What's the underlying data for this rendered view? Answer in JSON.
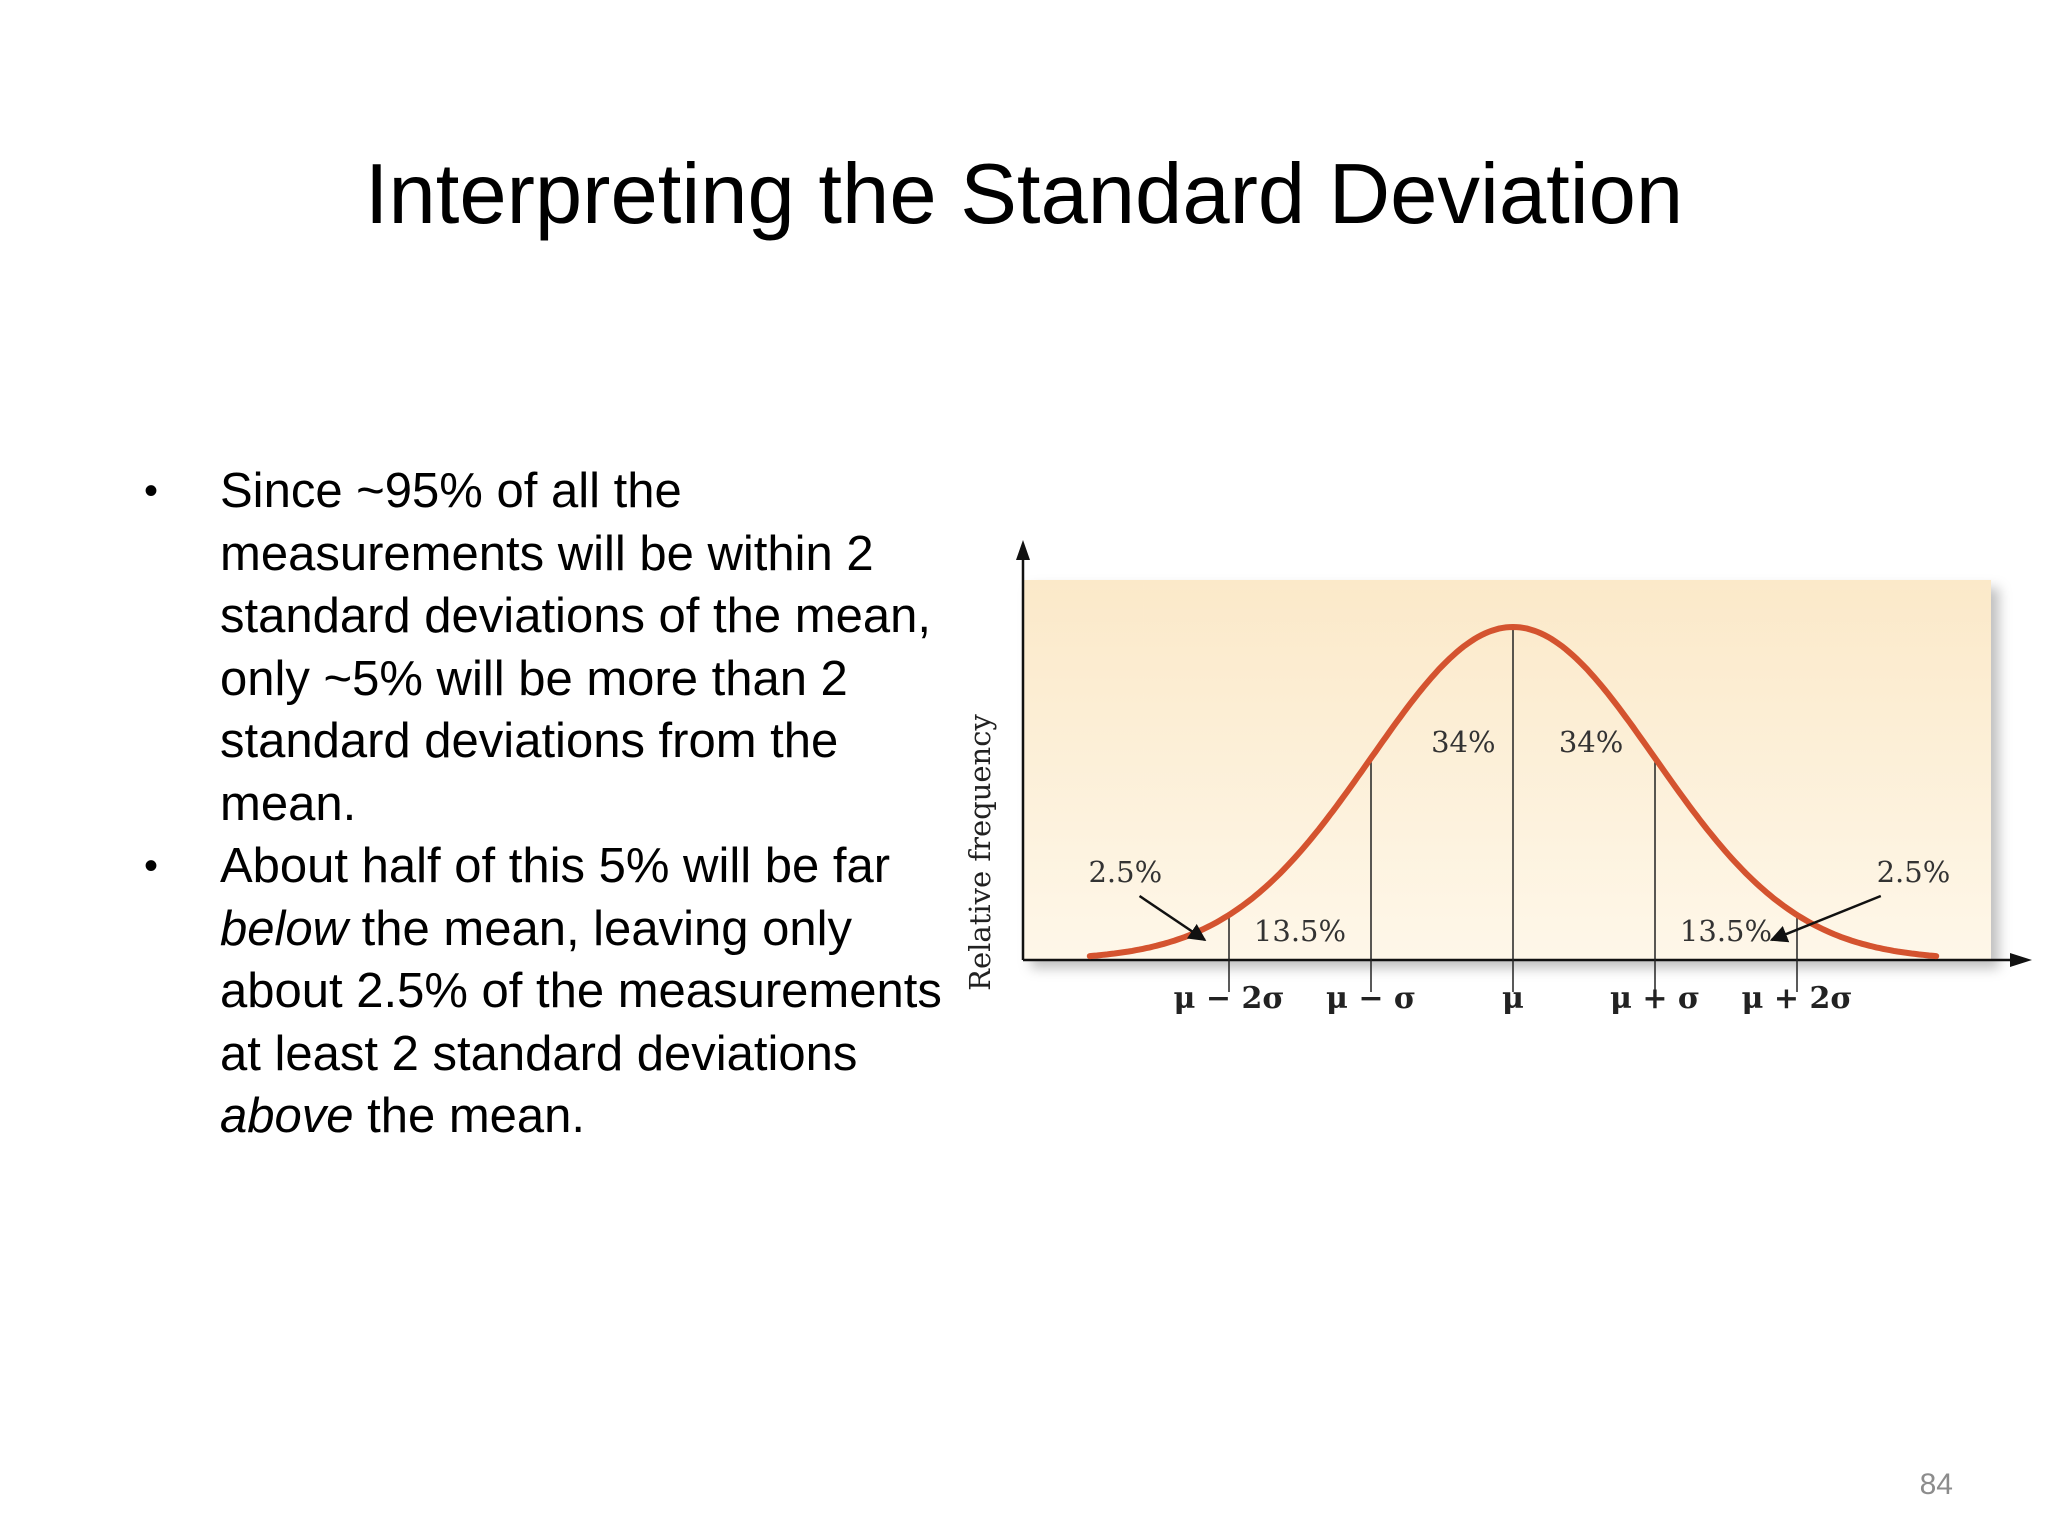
{
  "slide": {
    "title": "Interpreting the Standard Deviation",
    "page_number": "84"
  },
  "bullets": [
    {
      "text": "Since ~95% of all the measurements will be within 2 standard deviations of the mean, only ~5% will be more than 2 standard deviations from the mean."
    },
    {
      "part1": "About half of this 5% will be far ",
      "em1": "below",
      "part2": " the mean, leaving only about 2.5% of the measurements at least 2 standard deviations ",
      "em2": "above",
      "part3": " the mean."
    }
  ],
  "chart_data": {
    "type": "area",
    "distribution": "normal",
    "ylabel": "Relative frequency",
    "xlabel": "",
    "x_ticks": [
      "μ − 2σ",
      "μ − σ",
      "μ",
      "μ + σ",
      "μ + 2σ"
    ],
    "x_tick_sd": [
      -2,
      -1,
      0,
      1,
      2
    ],
    "region_labels": [
      {
        "label": "2.5%",
        "from_sd": -3,
        "to_sd": -2
      },
      {
        "label": "13.5%",
        "from_sd": -2,
        "to_sd": -1
      },
      {
        "label": "34%",
        "from_sd": -1,
        "to_sd": 0
      },
      {
        "label": "34%",
        "from_sd": 0,
        "to_sd": 1
      },
      {
        "label": "13.5%",
        "from_sd": 1,
        "to_sd": 2
      },
      {
        "label": "2.5%",
        "from_sd": 2,
        "to_sd": 3
      }
    ],
    "x_range_sd": [
      -2.98,
      2.98
    ],
    "colors": {
      "curve": "#d4532f",
      "background": "#fdf0d8"
    }
  }
}
